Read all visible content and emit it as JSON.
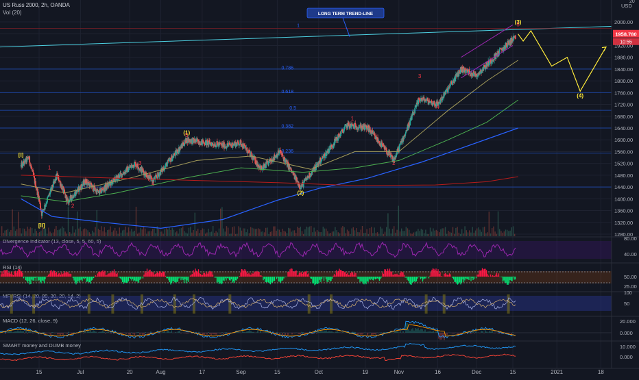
{
  "header": {
    "symbol_line": "US Russ 2000, 2h, OANDA",
    "volume_label": "Vol (20)"
  },
  "price_axis": {
    "currency": "USD",
    "top_value": "20",
    "ticks": [
      "2000.00",
      "1960.00",
      "1920.00",
      "1880.00",
      "1840.00",
      "1800.00",
      "1760.00",
      "1720.00",
      "1680.00",
      "1640.00",
      "1600.00",
      "1560.00",
      "1520.00",
      "1480.00",
      "1440.00",
      "1400.00",
      "1360.00",
      "1320.00",
      "1280.00"
    ],
    "last_price": "1958.780",
    "countdown": "10:55"
  },
  "time_axis": {
    "ticks": [
      "15",
      "Jul",
      "20",
      "Aug",
      "17",
      "Sep",
      "15",
      "Oct",
      "19",
      "Nov",
      "16",
      "Dec",
      "15",
      "2021",
      "18"
    ]
  },
  "callout": {
    "label": "LONG TERM TREND-LINE"
  },
  "fib_labels": [
    "1",
    "0.786",
    "0.618",
    "0.5",
    "0.382",
    "0.236"
  ],
  "wave_labels": {
    "major": [
      "[I]",
      "[II]",
      "(1)",
      "(2)",
      "(3)",
      "(4)"
    ],
    "minor": [
      "1",
      "2",
      "3",
      "4",
      "5",
      "1",
      "2",
      "3",
      "4",
      "5"
    ]
  },
  "indicators": [
    {
      "title": "Divergence Indicator (13, close, 5, 5, 60, 5)",
      "ticks": [
        "80.00",
        "40.00"
      ]
    },
    {
      "title": "RSI (14)",
      "ticks": [
        "50.00",
        "25.00"
      ]
    },
    {
      "title": "MFI/RSI (14, 20, 80, 30, 20, 14, 2)",
      "ticks": [
        "100",
        "50"
      ]
    },
    {
      "title": "MACD (12, 26, close, 9)",
      "ticks": [
        "20.000",
        "0.000",
        "-20.000"
      ]
    },
    {
      "title": "SMART money and DUMB money",
      "ticks": [
        "10.000",
        "0.000"
      ]
    }
  ],
  "colors": {
    "background": "#131722",
    "up_candle": "#26a69a",
    "down_candle": "#ef5350",
    "trend_line": "#4dd0e1",
    "projection": "#ffeb3b",
    "wave_red": "#f23645",
    "wave_yellow": "#ffeb3b",
    "ma_blue": "#2962ff",
    "ma_green": "#4caf50",
    "ma_olive": "#a39b5a",
    "ma_red": "#b71c1c",
    "divergence": "#9c27b0",
    "rsi_up": "#00e676",
    "rsi_down": "#ff1744",
    "smart": "#2196f3",
    "dumb": "#f44336"
  },
  "chart_data": {
    "type": "candlestick",
    "title": "US Russ 2000, 2h, OANDA",
    "ylabel": "USD",
    "ylim": [
      1280,
      2020
    ],
    "x_axis_ticks": [
      "15",
      "Jul",
      "20",
      "Aug",
      "17",
      "Sep",
      "15",
      "Oct",
      "19",
      "Nov",
      "16",
      "Dec",
      "15",
      "2021",
      "18"
    ],
    "price_path": [
      {
        "t": "Jun 08",
        "price": 1510
      },
      {
        "t": "Jun 11",
        "price": 1540
      },
      {
        "t": "Jun 15",
        "price": 1400
      },
      {
        "t": "Jun 16",
        "price": 1350
      },
      {
        "t": "Jun 22",
        "price": 1480
      },
      {
        "t": "Jun 26",
        "price": 1390
      },
      {
        "t": "Jul 03",
        "price": 1460
      },
      {
        "t": "Jul 08",
        "price": 1420
      },
      {
        "t": "Jul 15",
        "price": 1470
      },
      {
        "t": "Jul 22",
        "price": 1520
      },
      {
        "t": "Jul 29",
        "price": 1460
      },
      {
        "t": "Aug 11",
        "price": 1600
      },
      {
        "t": "Aug 26",
        "price": 1580
      },
      {
        "t": "Sep 01",
        "price": 1590
      },
      {
        "t": "Sep 09",
        "price": 1500
      },
      {
        "t": "Sep 16",
        "price": 1560
      },
      {
        "t": "Sep 24",
        "price": 1440
      },
      {
        "t": "Oct 12",
        "price": 1650
      },
      {
        "t": "Oct 20",
        "price": 1640
      },
      {
        "t": "Oct 30",
        "price": 1530
      },
      {
        "t": "Nov 09",
        "price": 1740
      },
      {
        "t": "Nov 16",
        "price": 1720
      },
      {
        "t": "Nov 25",
        "price": 1840
      },
      {
        "t": "Dec 01",
        "price": 1820
      },
      {
        "t": "Dec 10",
        "price": 1900
      },
      {
        "t": "Dec 17",
        "price": 1958.78
      }
    ],
    "projection_path": [
      {
        "t": "Dec 17",
        "price": 1958.78
      },
      {
        "t": "Dec 19",
        "price": 1935
      },
      {
        "t": "Dec 22",
        "price": 1970
      },
      {
        "t": "Dec 30",
        "price": 1850
      },
      {
        "t": "Jan 05",
        "price": 1880
      },
      {
        "t": "Jan 10",
        "price": 1765
      },
      {
        "t": "Jan 20",
        "price": 1915
      }
    ],
    "horizontal_levels": [
      1840,
      1760,
      1700,
      1640,
      1555,
      1440
    ],
    "wave_annotations": [
      {
        "label": "[I]",
        "t": "Jun 08",
        "price": 1550
      },
      {
        "label": "[II]",
        "t": "Jun 16",
        "price": 1310
      },
      {
        "label": "(1)",
        "t": "Aug 11",
        "price": 1625
      },
      {
        "label": "(2)",
        "t": "Sep 24",
        "price": 1420
      },
      {
        "label": "(3)",
        "t": "Dec 17",
        "price": 2000
      },
      {
        "label": "(4)",
        "t": "Jan 10",
        "price": 1750
      }
    ],
    "last_price": 1958.78
  }
}
